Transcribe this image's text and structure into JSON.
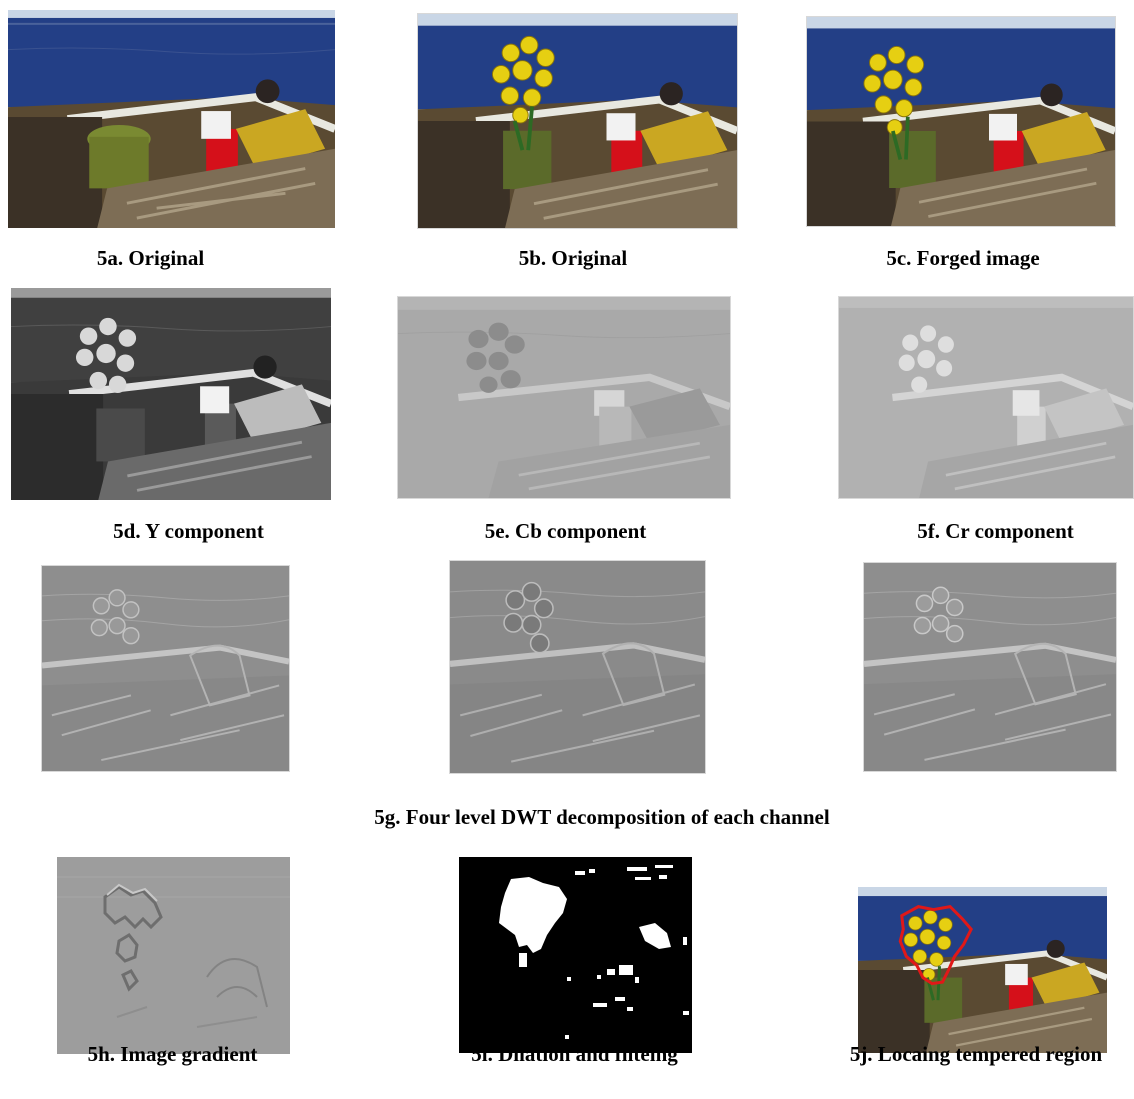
{
  "figure": {
    "panels": [
      {
        "id": "5a",
        "caption": "5a. Original",
        "style": "color"
      },
      {
        "id": "5b",
        "caption": "5b. Original",
        "style": "color-flowers"
      },
      {
        "id": "5c",
        "caption": "5c. Forged image",
        "style": "color-flowers"
      },
      {
        "id": "5d",
        "caption": "5d. Y component",
        "style": "gray-dark"
      },
      {
        "id": "5e",
        "caption": "5e. Cb component",
        "style": "gray-light"
      },
      {
        "id": "5f",
        "caption": "5f.  Cr component",
        "style": "gray-light"
      },
      {
        "id": "5g1",
        "caption": "",
        "style": "dwt"
      },
      {
        "id": "5g2",
        "caption": "",
        "style": "dwt"
      },
      {
        "id": "5g3",
        "caption": "",
        "style": "dwt"
      },
      {
        "id": "5h",
        "caption": "5h. Image gradient",
        "style": "gradient"
      },
      {
        "id": "5i",
        "caption": "5i. Dilation and filteing",
        "style": "binary-mask"
      },
      {
        "id": "5j",
        "caption": "5j. Locaing tempered region",
        "style": "color-outlined"
      }
    ],
    "row3_caption": "5g. Four level DWT decomposition of each channel"
  },
  "colors": {
    "sea": "#233f86",
    "sky": "#c9d6e6",
    "flowers": "#e6cf12",
    "bucket": "#d5101a",
    "outline": "#e01818"
  }
}
